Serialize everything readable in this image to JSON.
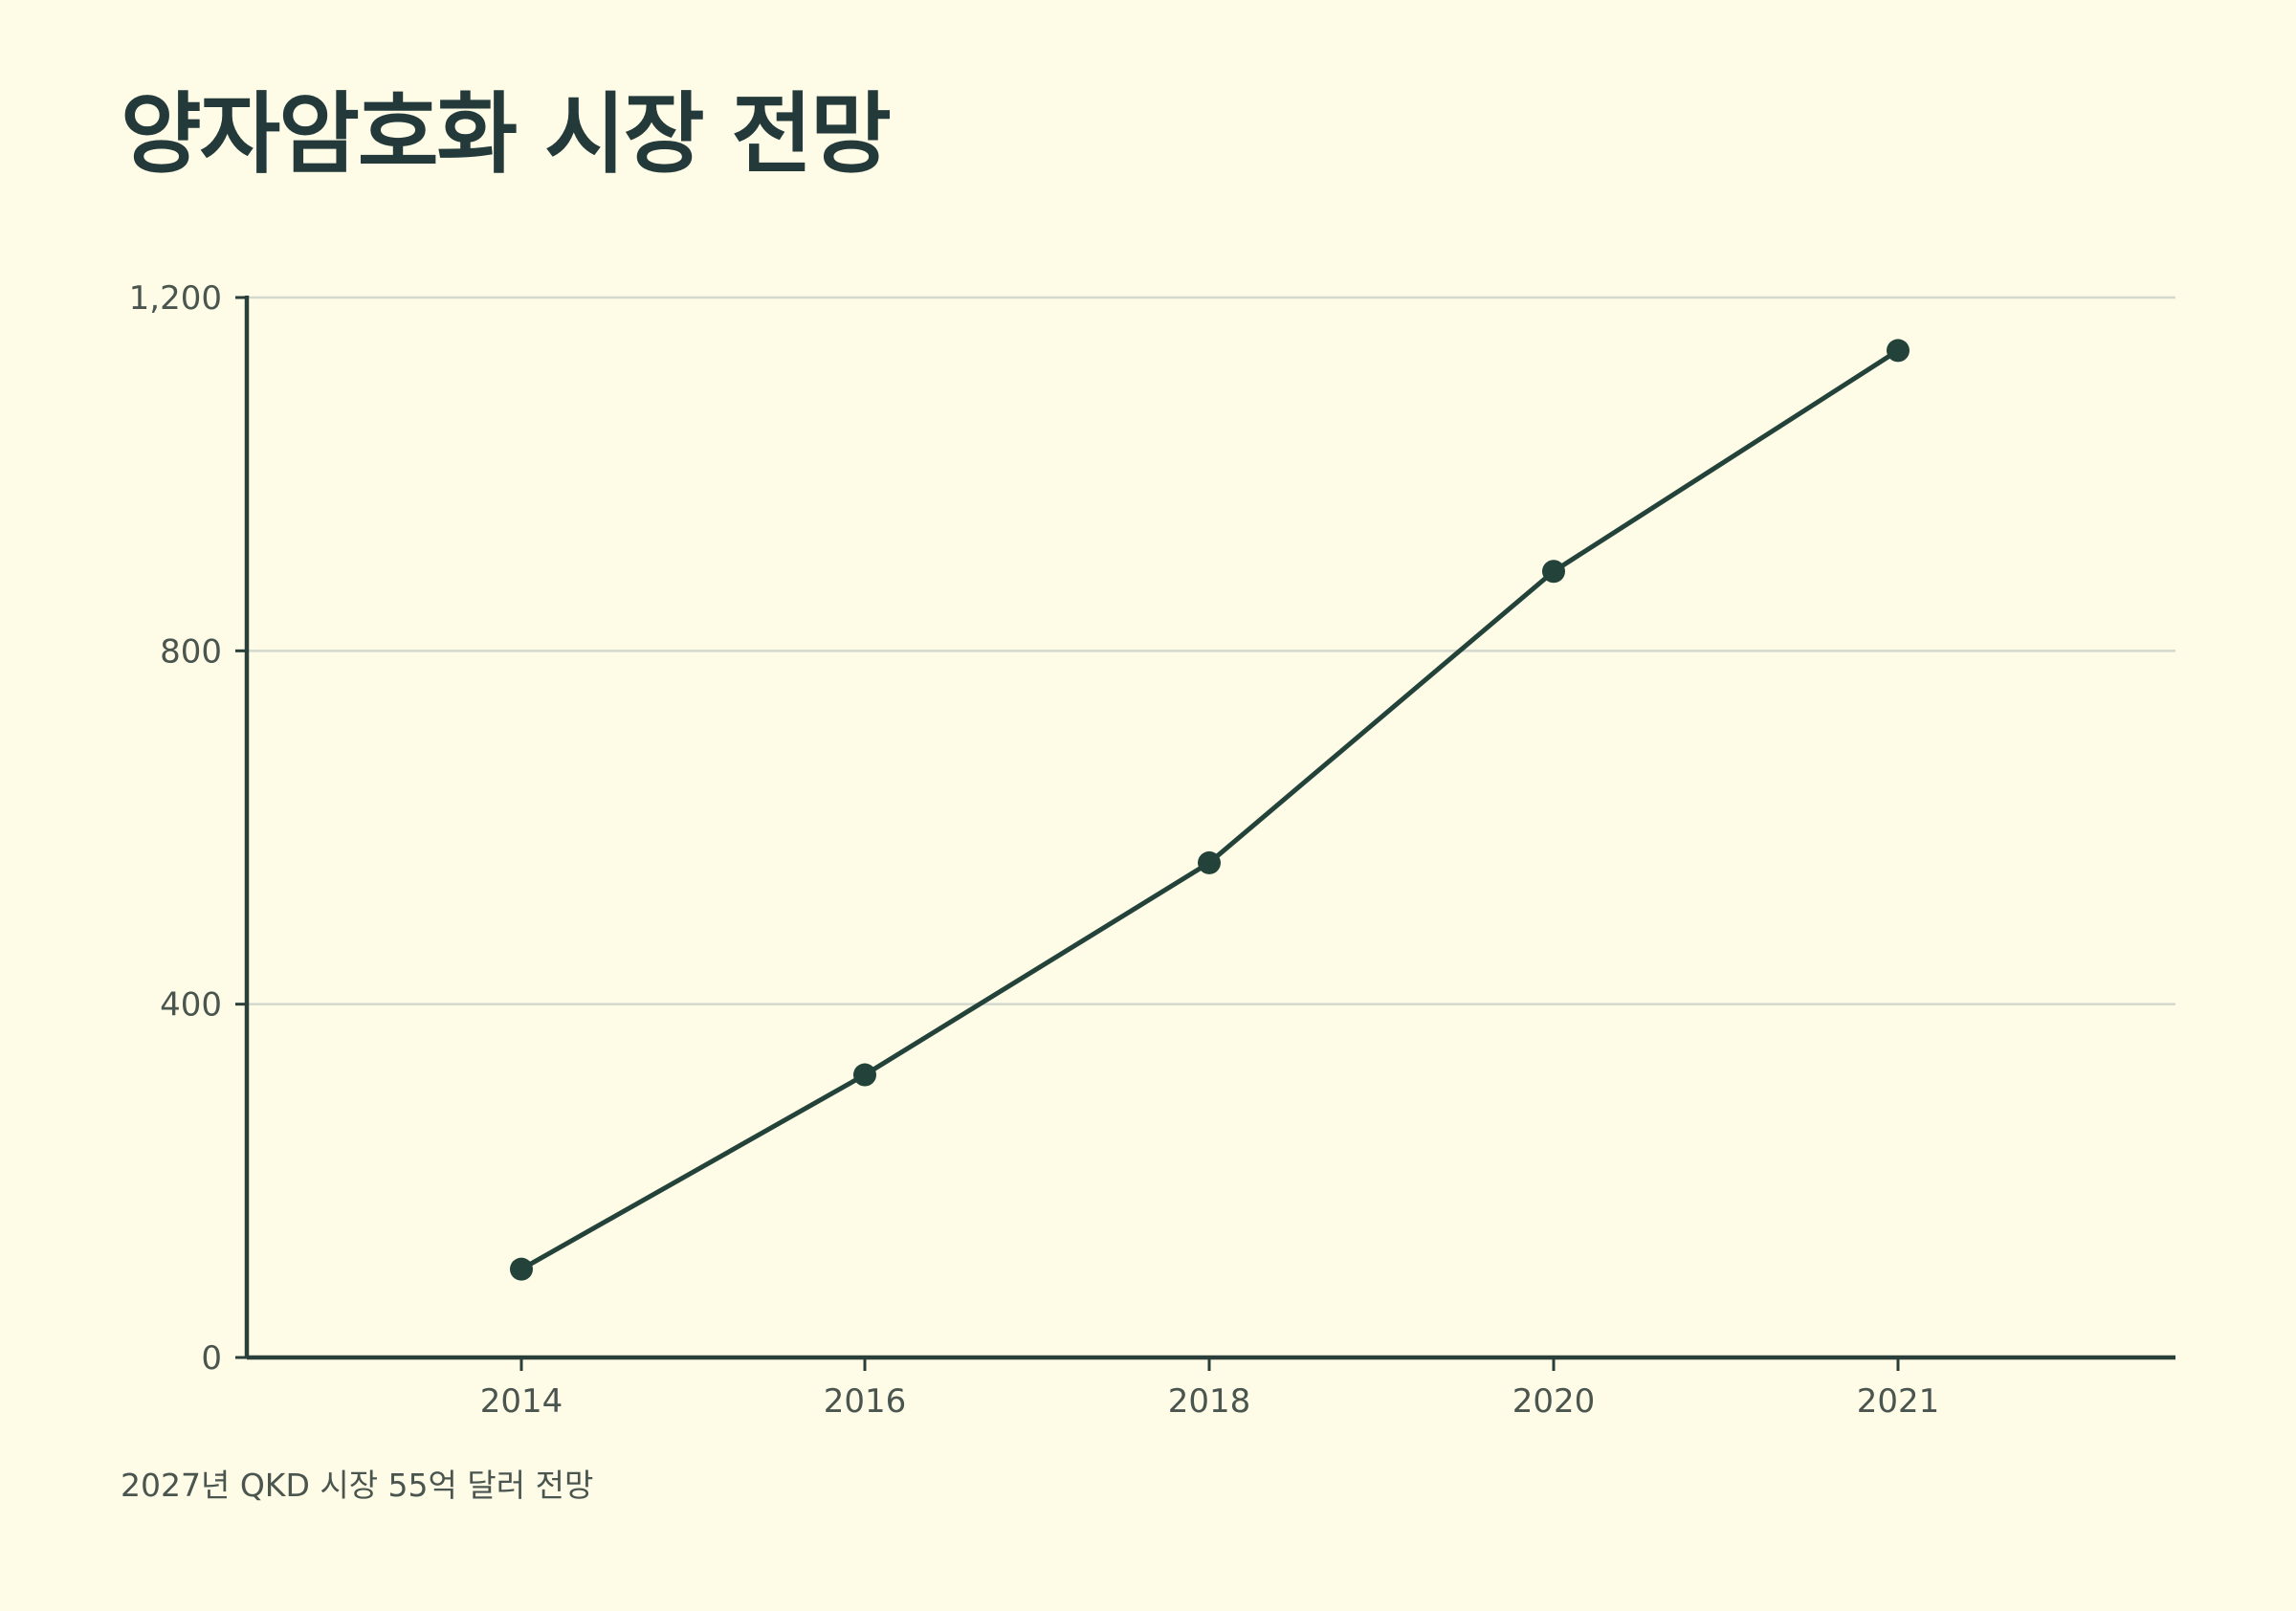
{
  "chart_data": {
    "type": "line",
    "title": "양자암호화 시장 전망",
    "xlabel": "",
    "ylabel": "",
    "categories": [
      "2014",
      "2016",
      "2018",
      "2020",
      "2021"
    ],
    "series": [
      {
        "values": [
          100,
          320,
          560,
          890,
          1140
        ]
      }
    ],
    "ylim": [
      0,
      1200
    ],
    "yticks": [
      0,
      400,
      800,
      1200
    ],
    "ytick_labels": [
      "0",
      "400",
      "800",
      "1,200"
    ],
    "grid": true,
    "annotation": "2027년 QKD 시장 55억 달러 전망"
  },
  "colors": {
    "background": "#fefce6",
    "line": "#23423a",
    "axis": "#2b3f3a",
    "grid": "#d3d9cf",
    "text": "#4a5550"
  }
}
